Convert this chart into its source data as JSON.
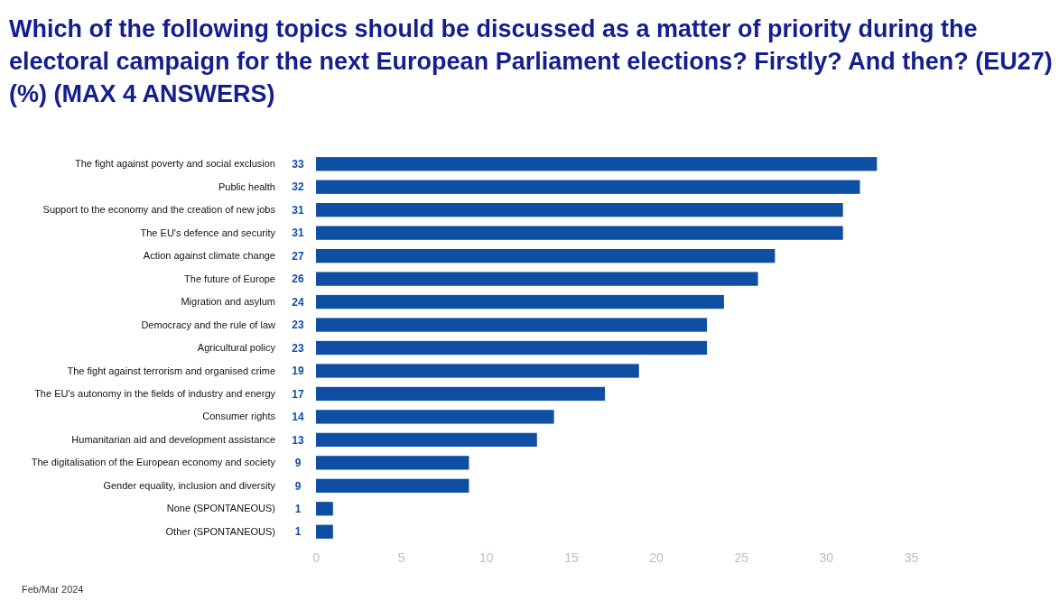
{
  "chart_data": {
    "type": "bar",
    "orientation": "horizontal",
    "title": "Which of the following topics should be discussed as a matter of priority during the electoral campaign for the next European Parliament elections? Firstly? And then? (EU27) (%) (MAX 4 ANSWERS)",
    "categories": [
      "The fight against poverty and social exclusion",
      "Public health",
      "Support to the economy and the creation of new jobs",
      "The EU's defence and security",
      "Action against climate change",
      "The future of Europe",
      "Migration and asylum",
      "Democracy and the rule of law",
      "Agricultural policy",
      "The fight against terrorism and organised crime",
      "The EU's autonomy in the fields of industry and energy",
      "Consumer rights",
      "Humanitarian aid and development assistance",
      "The digitalisation of the European economy and society",
      "Gender equality, inclusion and diversity",
      "None (SPONTANEOUS)",
      "Other (SPONTANEOUS)"
    ],
    "values": [
      33,
      32,
      31,
      31,
      27,
      26,
      24,
      23,
      23,
      19,
      17,
      14,
      13,
      9,
      9,
      1,
      1
    ],
    "color": "#0e4ea3",
    "xlim": [
      0,
      35
    ],
    "xticks": [
      0,
      5,
      10,
      15,
      20,
      25,
      30,
      35
    ],
    "data_labels": true,
    "annotations": [
      "Feb/Mar 2024"
    ]
  }
}
